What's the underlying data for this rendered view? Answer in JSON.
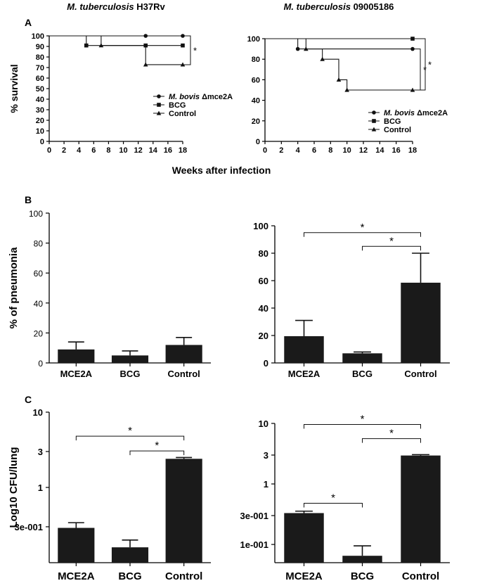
{
  "figure": {
    "panel_labels": [
      "A",
      "B",
      "C"
    ],
    "shared_xlabel": "Weeks after infection"
  },
  "chart_data": [
    {
      "id": "A1",
      "panel": "A",
      "type": "line",
      "title_italic": "M. tuberculosis",
      "title_rest": " H37Rv",
      "ylabel": "% survival",
      "xlabel": "",
      "xlim": [
        0,
        18
      ],
      "ylim": [
        0,
        100
      ],
      "xticks": [
        0,
        2,
        4,
        6,
        8,
        10,
        12,
        14,
        16,
        18
      ],
      "yticks": [
        0,
        10,
        20,
        30,
        40,
        50,
        60,
        70,
        80,
        90,
        100
      ],
      "ytick_labels": [
        "0",
        "10",
        "20",
        "30",
        "40",
        "50",
        "60",
        "70",
        "80",
        "90",
        "100"
      ],
      "legend": [
        {
          "marker": "circle",
          "italic": "M. bovis",
          "rest": " Δmce2A"
        },
        {
          "marker": "square",
          "italic": "",
          "rest": "BCG"
        },
        {
          "marker": "triangle",
          "italic": "",
          "rest": "Control"
        }
      ],
      "series": [
        {
          "marker": "circle",
          "x": [
            0,
            13,
            18
          ],
          "y": [
            100,
            100,
            100
          ],
          "steps": [
            [
              0,
              100
            ],
            [
              18,
              100
            ]
          ],
          "markers": [
            [
              13,
              100
            ],
            [
              18,
              100
            ]
          ]
        },
        {
          "marker": "square",
          "steps": [
            [
              0,
              100
            ],
            [
              5,
              100
            ],
            [
              5,
              90.9
            ],
            [
              18,
              90.9
            ]
          ],
          "markers": [
            [
              5,
              90.9
            ],
            [
              13,
              90.9
            ],
            [
              18,
              90.9
            ]
          ]
        },
        {
          "marker": "triangle",
          "steps": [
            [
              0,
              100
            ],
            [
              7,
              100
            ],
            [
              7,
              90.9
            ],
            [
              13,
              90.9
            ],
            [
              13,
              72.7
            ],
            [
              18,
              72.7
            ]
          ],
          "markers": [
            [
              7,
              90.9
            ],
            [
              13,
              72.7
            ],
            [
              18,
              72.7
            ]
          ]
        }
      ],
      "significance": [
        {
          "type": "bracket-right",
          "from": 100,
          "to": 72.7,
          "label": "*"
        }
      ]
    },
    {
      "id": "A2",
      "panel": "A",
      "type": "line",
      "title_italic": "M. tuberculosis",
      "title_rest": " 09005186",
      "ylabel": "",
      "xlabel": "",
      "xlim": [
        0,
        18
      ],
      "ylim": [
        0,
        100
      ],
      "xticks": [
        0,
        2,
        4,
        6,
        8,
        10,
        12,
        14,
        16,
        18
      ],
      "yticks": [
        0,
        20,
        40,
        60,
        80,
        100
      ],
      "ytick_labels": [
        "0",
        "20",
        "40",
        "60",
        "80",
        "100"
      ],
      "legend": [
        {
          "marker": "circle",
          "italic": "M. bovis",
          "rest": " Δmce2A"
        },
        {
          "marker": "square",
          "italic": "",
          "rest": "BCG"
        },
        {
          "marker": "triangle",
          "italic": "",
          "rest": "Control"
        }
      ],
      "series": [
        {
          "marker": "square",
          "steps": [
            [
              0,
              100
            ],
            [
              18,
              100
            ]
          ],
          "markers": [
            [
              18,
              100
            ]
          ]
        },
        {
          "marker": "circle",
          "steps": [
            [
              0,
              100
            ],
            [
              4,
              100
            ],
            [
              4,
              90
            ],
            [
              18,
              90
            ]
          ],
          "markers": [
            [
              4,
              90
            ],
            [
              18,
              90
            ]
          ]
        },
        {
          "marker": "triangle",
          "steps": [
            [
              0,
              100
            ],
            [
              5,
              100
            ],
            [
              5,
              90
            ],
            [
              7,
              90
            ],
            [
              7,
              80
            ],
            [
              9,
              80
            ],
            [
              9,
              60
            ],
            [
              10,
              60
            ],
            [
              10,
              50
            ],
            [
              18,
              50
            ]
          ],
          "markers": [
            [
              5,
              90
            ],
            [
              7,
              80
            ],
            [
              9,
              60
            ],
            [
              10,
              50
            ],
            [
              18,
              50
            ]
          ]
        }
      ],
      "significance": [
        {
          "type": "bracket-right",
          "from": 90,
          "to": 50,
          "label": "*",
          "offset": 1
        },
        {
          "type": "bracket-right",
          "from": 100,
          "to": 50,
          "label": "*",
          "offset": 2
        }
      ]
    },
    {
      "id": "B1",
      "panel": "B",
      "type": "bar",
      "ylabel": "% of pneumonia",
      "categories": [
        "MCE2A",
        "BCG",
        "Control"
      ],
      "values": [
        9,
        5,
        12
      ],
      "errors": [
        5,
        3,
        5
      ],
      "ylim": [
        0,
        100
      ],
      "yticks": [
        0,
        20,
        40,
        60,
        80,
        100
      ],
      "ytick_labels": [
        "0",
        "20",
        "40",
        "60",
        "80",
        "100"
      ],
      "significance": []
    },
    {
      "id": "B2",
      "panel": "B",
      "type": "bar",
      "ylabel": "",
      "categories": [
        "MCE2A",
        "BCG",
        "Control"
      ],
      "values": [
        19.5,
        7,
        58.5
      ],
      "errors": [
        11.5,
        1,
        21.5
      ],
      "ylim": [
        0,
        100
      ],
      "yticks": [
        0,
        20,
        40,
        60,
        80,
        100
      ],
      "ytick_labels": [
        "0",
        "20",
        "40",
        "60",
        "80",
        "100"
      ],
      "significance": [
        {
          "from": 0,
          "to": 2,
          "y": 95,
          "label": "*"
        },
        {
          "from": 1,
          "to": 2,
          "y": 85,
          "label": "*"
        }
      ]
    },
    {
      "id": "C1",
      "panel": "C",
      "type": "bar",
      "scale": "log",
      "ylabel": "Log10 CFU/lung",
      "categories": [
        "MCE2A",
        "BCG",
        "Control"
      ],
      "values": [
        0.29,
        0.16,
        2.4
      ],
      "errors": [
        0.05,
        0.04,
        0.1
      ],
      "ylim": [
        0.1,
        10
      ],
      "yticks": [
        0.3,
        1,
        3,
        10
      ],
      "ytick_labels": [
        "3e-001",
        "1",
        "3",
        "10"
      ],
      "significance": [
        {
          "from": 0,
          "to": 2,
          "y": 4.8,
          "label": "*"
        },
        {
          "from": 1,
          "to": 2,
          "y": 3.05,
          "label": "*"
        }
      ]
    },
    {
      "id": "C2",
      "panel": "C",
      "type": "bar",
      "scale": "log",
      "ylabel": "",
      "categories": [
        "MCE2A",
        "BCG",
        "Control"
      ],
      "values": [
        0.33,
        0.065,
        2.95
      ],
      "errors": [
        0.025,
        0.03,
        0.1
      ],
      "ylim": [
        0.05,
        10
      ],
      "yticks": [
        0.1,
        0.3,
        1,
        3,
        10
      ],
      "ytick_labels": [
        "1e-001",
        "3e-001",
        "1",
        "3",
        "10"
      ],
      "significance": [
        {
          "from": 0,
          "to": 2,
          "y": 9.6,
          "label": "*"
        },
        {
          "from": 1,
          "to": 2,
          "y": 5.6,
          "label": "*"
        },
        {
          "from": 0,
          "to": 1,
          "y": 0.48,
          "label": "*"
        }
      ]
    }
  ]
}
